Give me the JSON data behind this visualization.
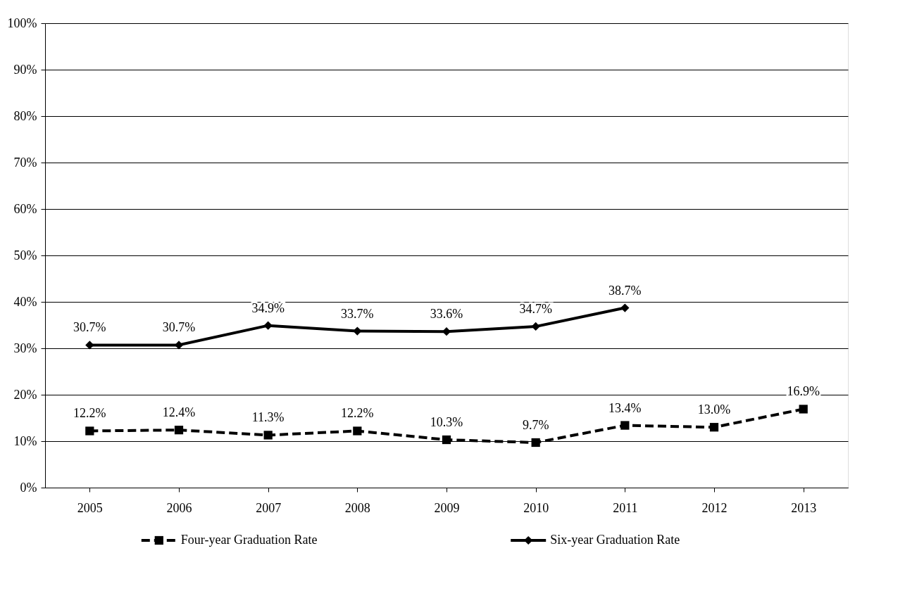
{
  "chart_data": {
    "type": "line",
    "categories": [
      "2005",
      "2006",
      "2007",
      "2008",
      "2009",
      "2010",
      "2011",
      "2012",
      "2013"
    ],
    "series": [
      {
        "name": "Four-year Graduation Rate",
        "color": "#000000",
        "marker": "square",
        "line_style": "dashed",
        "values": [
          12.2,
          12.4,
          11.3,
          12.2,
          10.3,
          9.7,
          13.4,
          13.0,
          16.9
        ],
        "value_labels": [
          "12.2%",
          "12.4%",
          "11.3%",
          "12.2%",
          "10.3%",
          "9.7%",
          "13.4%",
          "13.0%",
          "16.9%"
        ]
      },
      {
        "name": "Six-year Graduation Rate",
        "color": "#000000",
        "marker": "diamond",
        "line_style": "solid",
        "values": [
          30.7,
          30.7,
          34.9,
          33.7,
          33.6,
          34.7,
          38.7,
          null,
          null
        ],
        "value_labels": [
          "30.7%",
          "30.7%",
          "34.9%",
          "33.7%",
          "33.6%",
          "34.7%",
          "38.7%",
          null,
          null
        ]
      }
    ],
    "ylim": [
      0,
      100
    ],
    "yticks": [
      {
        "value": 0,
        "label": "0%"
      },
      {
        "value": 10,
        "label": "10%"
      },
      {
        "value": 20,
        "label": "20%"
      },
      {
        "value": 30,
        "label": "30%"
      },
      {
        "value": 40,
        "label": "40%"
      },
      {
        "value": 50,
        "label": "50%"
      },
      {
        "value": 60,
        "label": "60%"
      },
      {
        "value": 70,
        "label": "70%"
      },
      {
        "value": 80,
        "label": "80%"
      },
      {
        "value": 90,
        "label": "90%"
      },
      {
        "value": 100,
        "label": "100%"
      }
    ],
    "grid": "y",
    "legend": "bottom"
  }
}
